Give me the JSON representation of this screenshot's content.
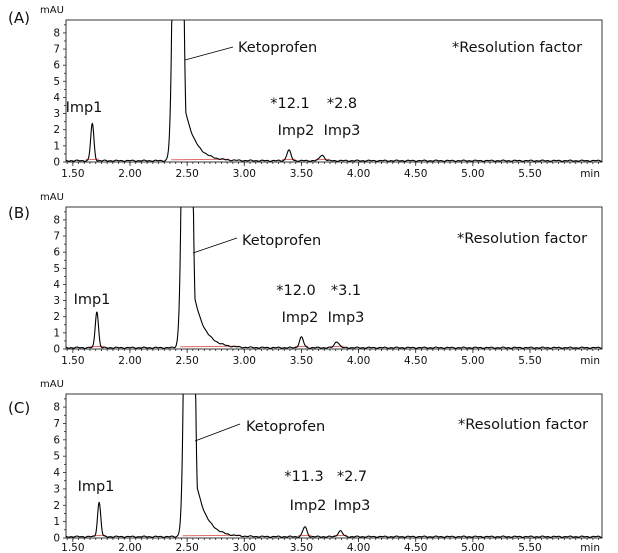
{
  "chart_data": [
    {
      "type": "line",
      "panel_label": "(A)",
      "y_unit": "mAU",
      "x_unit": "min",
      "x_ticks": [
        "1.50",
        "2.00",
        "2.50",
        "3.00",
        "3.50",
        "4.00",
        "4.50",
        "5.00",
        "5.50"
      ],
      "y_ticks": [
        "0",
        "1",
        "2",
        "3",
        "4",
        "5",
        "6",
        "7",
        "8"
      ],
      "xlim": [
        1.44,
        6.13
      ],
      "ylim": [
        0,
        8.8
      ],
      "note": "*Resolution factor",
      "peaks": [
        {
          "name": "Imp1",
          "rt": 1.67,
          "height": 2.3,
          "width": 0.014
        },
        {
          "name": "Ketoprofen",
          "rt": 2.42,
          "height": 60,
          "width": 0.028,
          "tail": 0.09
        },
        {
          "name": "Imp2",
          "rt": 3.39,
          "height": 0.65,
          "width": 0.018,
          "resolution": "*12.1"
        },
        {
          "name": "Imp3",
          "rt": 3.68,
          "height": 0.35,
          "width": 0.02,
          "resolution": "*2.8"
        }
      ],
      "labels": {
        "imp1": "Imp1",
        "keto": "Ketoprofen",
        "imp2": "Imp2",
        "imp3": "Imp3",
        "res2": "*12.1",
        "res3": "*2.8"
      },
      "color_trace": "#000000",
      "color_baseline": "#e06a6a"
    },
    {
      "type": "line",
      "panel_label": "(B)",
      "y_unit": "mAU",
      "x_unit": "min",
      "x_ticks": [
        "1.50",
        "2.00",
        "2.50",
        "3.00",
        "3.50",
        "4.00",
        "4.50",
        "5.00",
        "5.50"
      ],
      "y_ticks": [
        "0",
        "1",
        "2",
        "3",
        "4",
        "5",
        "6",
        "7",
        "8"
      ],
      "xlim": [
        1.44,
        6.13
      ],
      "ylim": [
        0,
        8.8
      ],
      "note": "*Resolution factor",
      "peaks": [
        {
          "name": "Imp1",
          "rt": 1.71,
          "height": 2.25,
          "width": 0.014
        },
        {
          "name": "Ketoprofen",
          "rt": 2.5,
          "height": 60,
          "width": 0.028,
          "tail": 0.09
        },
        {
          "name": "Imp2",
          "rt": 3.5,
          "height": 0.65,
          "width": 0.018,
          "resolution": "*12.0"
        },
        {
          "name": "Imp3",
          "rt": 3.81,
          "height": 0.38,
          "width": 0.02,
          "resolution": "*3.1"
        }
      ],
      "labels": {
        "imp1": "Imp1",
        "keto": "Ketoprofen",
        "imp2": "Imp2",
        "imp3": "Imp3",
        "res2": "*12.0",
        "res3": "*3.1"
      },
      "color_trace": "#000000",
      "color_baseline": "#e06a6a"
    },
    {
      "type": "line",
      "panel_label": "(C)",
      "y_unit": "mAU",
      "x_unit": "min",
      "x_ticks": [
        "1.50",
        "2.00",
        "2.50",
        "3.00",
        "3.50",
        "4.00",
        "4.50",
        "5.00",
        "5.50"
      ],
      "y_ticks": [
        "0",
        "1",
        "2",
        "3",
        "4",
        "5",
        "6",
        "7",
        "8"
      ],
      "xlim": [
        1.44,
        6.13
      ],
      "ylim": [
        0,
        8.8
      ],
      "note": "*Resolution factor",
      "peaks": [
        {
          "name": "Imp1",
          "rt": 1.73,
          "height": 2.1,
          "width": 0.014
        },
        {
          "name": "Ketoprofen",
          "rt": 2.52,
          "height": 60,
          "width": 0.028,
          "tail": 0.09
        },
        {
          "name": "Imp2",
          "rt": 3.53,
          "height": 0.6,
          "width": 0.018,
          "resolution": "*11.3"
        },
        {
          "name": "Imp3",
          "rt": 3.84,
          "height": 0.35,
          "width": 0.02,
          "resolution": "*2.7"
        }
      ],
      "labels": {
        "imp1": "Imp1",
        "keto": "Ketoprofen",
        "imp2": "Imp2",
        "imp3": "Imp3",
        "res2": "*11.3",
        "res3": "*2.7"
      },
      "color_trace": "#000000",
      "color_baseline": "#e06a6a"
    }
  ]
}
